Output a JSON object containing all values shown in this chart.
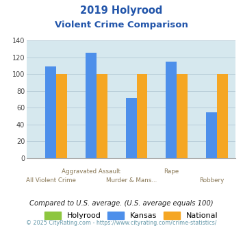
{
  "title_line1": "2019 Holyrood",
  "title_line2": "Violent Crime Comparison",
  "kansas_values": [
    109,
    126,
    72,
    115,
    55
  ],
  "national_values": [
    100,
    100,
    100,
    100,
    100
  ],
  "holyrood_values": [
    0,
    0,
    0,
    0,
    0
  ],
  "colors": {
    "Holyrood": "#8dc63f",
    "Kansas": "#4d8fea",
    "National": "#f5a623"
  },
  "ylim": [
    0,
    140
  ],
  "yticks": [
    0,
    20,
    40,
    60,
    80,
    100,
    120,
    140
  ],
  "grid_color": "#b8cdd8",
  "bg_color": "#d6e8ee",
  "title_color": "#2255aa",
  "note_text": "Compared to U.S. average. (U.S. average equals 100)",
  "footer": "© 2025 CityRating.com - https://www.cityrating.com/crime-statistics/",
  "note_color": "#222222",
  "footer_color": "#6699aa",
  "top_labels": [
    "",
    "Aggravated Assault",
    "",
    "Rape",
    ""
  ],
  "bottom_labels": [
    "All Violent Crime",
    "",
    "Murder & Mans...",
    "",
    "Robbery"
  ]
}
